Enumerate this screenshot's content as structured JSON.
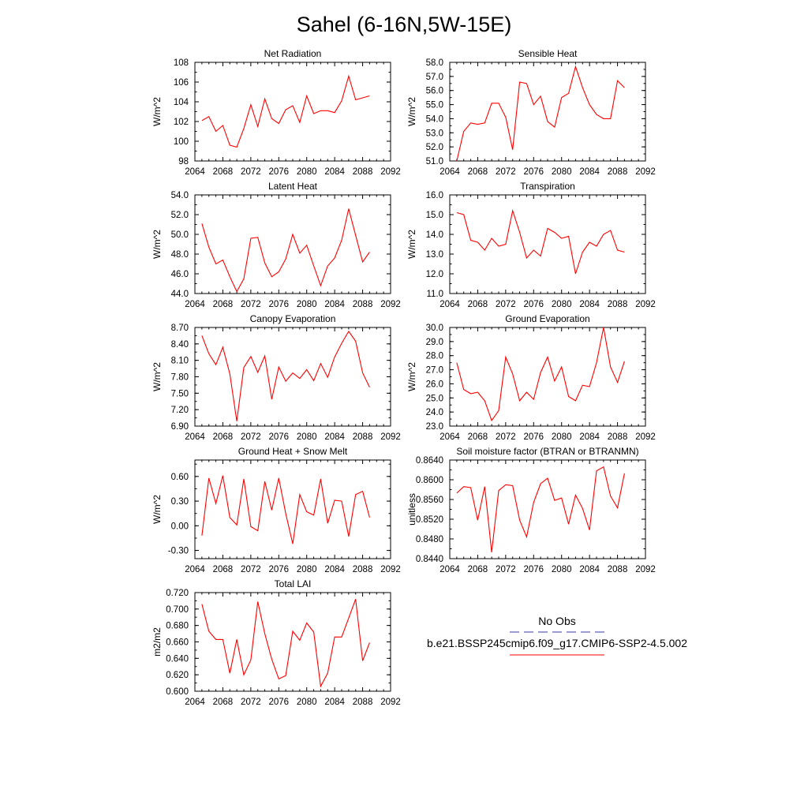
{
  "page_title": "Sahel (6-16N,5W-15E)",
  "legend": {
    "obs_label": "No Obs",
    "obs_color": "#3a3aa6",
    "case_label": "b.e21.BSSP245cmip6.f09_g17.CMIP6-SSP2-4.5.002",
    "case_color": "#ff0000"
  },
  "chart_data": [
    {
      "type": "line",
      "title": "Net Radiation",
      "ylabel": "W/m^2",
      "xlabel": "",
      "xlim": [
        2064,
        2092
      ],
      "xticks": [
        "2064",
        "2068",
        "2072",
        "2076",
        "2080",
        "2084",
        "2088",
        "2092"
      ],
      "ylim": [
        98,
        108
      ],
      "yticks": [
        "98",
        "100",
        "102",
        "104",
        "106",
        "108"
      ],
      "series": [
        {
          "color": "#ff0000",
          "x": [
            2065,
            2066,
            2067,
            2068,
            2069,
            2070,
            2071,
            2072,
            2073,
            2074,
            2075,
            2076,
            2077,
            2078,
            2079,
            2080,
            2081,
            2082,
            2083,
            2084,
            2085,
            2086,
            2087,
            2088,
            2089
          ],
          "values": [
            102.1,
            102.5,
            101.0,
            101.6,
            99.6,
            99.4,
            101.3,
            103.7,
            101.5,
            104.3,
            102.3,
            101.8,
            103.2,
            103.6,
            101.9,
            104.6,
            102.8,
            103.1,
            103.1,
            102.9,
            104.1,
            106.6,
            104.2,
            104.4,
            104.6
          ]
        }
      ]
    },
    {
      "type": "line",
      "title": "Sensible Heat",
      "ylabel": "W/m^2",
      "xlabel": "",
      "xlim": [
        2064,
        2092
      ],
      "xticks": [
        "2064",
        "2068",
        "2072",
        "2076",
        "2080",
        "2084",
        "2088",
        "2092"
      ],
      "ylim": [
        51,
        58
      ],
      "yticks": [
        "51.0",
        "52.0",
        "53.0",
        "54.0",
        "55.0",
        "56.0",
        "57.0",
        "58.0"
      ],
      "series": [
        {
          "color": "#ff0000",
          "x": [
            2065,
            2066,
            2067,
            2068,
            2069,
            2070,
            2071,
            2072,
            2073,
            2074,
            2075,
            2076,
            2077,
            2078,
            2079,
            2080,
            2081,
            2082,
            2083,
            2084,
            2085,
            2086,
            2087,
            2088,
            2089
          ],
          "values": [
            51.0,
            53.1,
            53.7,
            53.6,
            53.7,
            55.1,
            55.1,
            54.1,
            51.8,
            56.6,
            56.5,
            55.0,
            55.6,
            53.8,
            53.4,
            55.5,
            55.8,
            57.7,
            56.2,
            55.0,
            54.3,
            54.0,
            54.0,
            56.7,
            56.2
          ]
        }
      ]
    },
    {
      "type": "line",
      "title": "Latent Heat",
      "ylabel": "W/m^2",
      "xlabel": "",
      "xlim": [
        2064,
        2092
      ],
      "xticks": [
        "2064",
        "2068",
        "2072",
        "2076",
        "2080",
        "2084",
        "2088",
        "2092"
      ],
      "ylim": [
        44,
        54
      ],
      "yticks": [
        "44.0",
        "46.0",
        "48.0",
        "50.0",
        "52.0",
        "54.0"
      ],
      "series": [
        {
          "color": "#ff0000",
          "x": [
            2065,
            2066,
            2067,
            2068,
            2069,
            2070,
            2071,
            2072,
            2073,
            2074,
            2075,
            2076,
            2077,
            2078,
            2079,
            2080,
            2081,
            2082,
            2083,
            2084,
            2085,
            2086,
            2087,
            2088,
            2089
          ],
          "values": [
            51.1,
            48.7,
            47.0,
            47.4,
            45.7,
            44.2,
            45.5,
            49.6,
            49.7,
            47.1,
            45.7,
            46.2,
            47.5,
            50.0,
            48.1,
            48.9,
            46.8,
            44.8,
            46.8,
            47.6,
            49.4,
            52.6,
            49.9,
            47.2,
            48.2
          ]
        }
      ]
    },
    {
      "type": "line",
      "title": "Transpiration",
      "ylabel": "W/m^2",
      "xlabel": "",
      "xlim": [
        2064,
        2092
      ],
      "xticks": [
        "2064",
        "2068",
        "2072",
        "2076",
        "2080",
        "2084",
        "2088",
        "2092"
      ],
      "ylim": [
        11,
        16
      ],
      "yticks": [
        "11.0",
        "12.0",
        "13.0",
        "14.0",
        "15.0",
        "16.0"
      ],
      "series": [
        {
          "color": "#ff0000",
          "x": [
            2065,
            2066,
            2067,
            2068,
            2069,
            2070,
            2071,
            2072,
            2073,
            2074,
            2075,
            2076,
            2077,
            2078,
            2079,
            2080,
            2081,
            2082,
            2083,
            2084,
            2085,
            2086,
            2087,
            2088,
            2089
          ],
          "values": [
            15.1,
            15.0,
            13.7,
            13.6,
            13.2,
            13.8,
            13.4,
            13.5,
            15.2,
            14.1,
            12.8,
            13.2,
            12.9,
            14.3,
            14.1,
            13.8,
            13.9,
            12.0,
            13.1,
            13.6,
            13.4,
            14.0,
            14.2,
            13.2,
            13.1
          ]
        }
      ]
    },
    {
      "type": "line",
      "title": "Canopy Evaporation",
      "ylabel": "W/m^2",
      "xlabel": "",
      "xlim": [
        2064,
        2092
      ],
      "xticks": [
        "2064",
        "2068",
        "2072",
        "2076",
        "2080",
        "2084",
        "2088",
        "2092"
      ],
      "ylim": [
        6.9,
        8.7
      ],
      "yticks": [
        "6.90",
        "7.20",
        "7.50",
        "7.80",
        "8.10",
        "8.40",
        "8.70"
      ],
      "series": [
        {
          "color": "#ff0000",
          "x": [
            2065,
            2066,
            2067,
            2068,
            2069,
            2070,
            2071,
            2072,
            2073,
            2074,
            2075,
            2076,
            2077,
            2078,
            2079,
            2080,
            2081,
            2082,
            2083,
            2084,
            2085,
            2086,
            2087,
            2088,
            2089
          ],
          "values": [
            8.55,
            8.22,
            8.02,
            8.34,
            7.85,
            6.99,
            7.97,
            8.17,
            7.88,
            8.18,
            7.39,
            7.98,
            7.72,
            7.87,
            7.77,
            7.93,
            7.73,
            8.04,
            7.79,
            8.16,
            8.41,
            8.63,
            8.45,
            7.87,
            7.61
          ]
        }
      ]
    },
    {
      "type": "line",
      "title": "Ground Evaporation",
      "ylabel": "W/m^2",
      "xlabel": "",
      "xlim": [
        2064,
        2092
      ],
      "xticks": [
        "2064",
        "2068",
        "2072",
        "2076",
        "2080",
        "2084",
        "2088",
        "2092"
      ],
      "ylim": [
        23,
        30
      ],
      "yticks": [
        "23.0",
        "24.0",
        "25.0",
        "26.0",
        "27.0",
        "28.0",
        "29.0",
        "30.0"
      ],
      "series": [
        {
          "color": "#ff0000",
          "x": [
            2065,
            2066,
            2067,
            2068,
            2069,
            2070,
            2071,
            2072,
            2073,
            2074,
            2075,
            2076,
            2077,
            2078,
            2079,
            2080,
            2081,
            2082,
            2083,
            2084,
            2085,
            2086,
            2087,
            2088,
            2089
          ],
          "values": [
            27.5,
            25.6,
            25.3,
            25.4,
            24.8,
            23.4,
            24.1,
            27.9,
            26.7,
            24.8,
            25.4,
            24.9,
            26.8,
            27.9,
            26.2,
            27.2,
            25.1,
            24.8,
            25.9,
            25.8,
            27.5,
            30.0,
            27.2,
            26.1,
            27.6
          ]
        }
      ]
    },
    {
      "type": "line",
      "title": "Ground Heat + Snow Melt",
      "ylabel": "W/m^2",
      "xlabel": "",
      "xlim": [
        2064,
        2092
      ],
      "xticks": [
        "2064",
        "2068",
        "2072",
        "2076",
        "2080",
        "2084",
        "2088",
        "2092"
      ],
      "ylim": [
        -0.4,
        0.8
      ],
      "yticks": [
        "-0.30",
        "0.00",
        "0.30",
        "0.60"
      ],
      "ytick_values": [
        -0.3,
        0.0,
        0.3,
        0.6
      ],
      "series": [
        {
          "color": "#ff0000",
          "x": [
            2065,
            2066,
            2067,
            2068,
            2069,
            2070,
            2071,
            2072,
            2073,
            2074,
            2075,
            2076,
            2077,
            2078,
            2079,
            2080,
            2081,
            2082,
            2083,
            2084,
            2085,
            2086,
            2087,
            2088,
            2089
          ],
          "values": [
            -0.12,
            0.58,
            0.27,
            0.61,
            0.1,
            0.01,
            0.57,
            -0.01,
            -0.06,
            0.54,
            0.19,
            0.58,
            0.15,
            -0.22,
            0.38,
            0.17,
            0.13,
            0.57,
            0.03,
            0.31,
            0.3,
            -0.13,
            0.38,
            0.42,
            0.1
          ]
        }
      ]
    },
    {
      "type": "line",
      "title": "Soil moisture factor (BTRAN or BTRANMN)",
      "ylabel": "unitless",
      "xlabel": "",
      "xlim": [
        2064,
        2092
      ],
      "xticks": [
        "2064",
        "2068",
        "2072",
        "2076",
        "2080",
        "2084",
        "2088",
        "2092"
      ],
      "ylim": [
        0.844,
        0.864
      ],
      "yticks": [
        "0.8440",
        "0.8480",
        "0.8520",
        "0.8560",
        "0.8600",
        "0.8640"
      ],
      "series": [
        {
          "color": "#ff0000",
          "x": [
            2065,
            2066,
            2067,
            2068,
            2069,
            2070,
            2071,
            2072,
            2073,
            2074,
            2075,
            2076,
            2077,
            2078,
            2079,
            2080,
            2081,
            2082,
            2083,
            2084,
            2085,
            2086,
            2087,
            2088,
            2089
          ],
          "values": [
            0.8573,
            0.8586,
            0.8584,
            0.8518,
            0.8586,
            0.8453,
            0.8578,
            0.859,
            0.8588,
            0.8518,
            0.8484,
            0.8554,
            0.8592,
            0.8603,
            0.8558,
            0.8563,
            0.851,
            0.8569,
            0.8542,
            0.8498,
            0.8618,
            0.8626,
            0.8567,
            0.8543,
            0.8613
          ]
        }
      ]
    },
    {
      "type": "line",
      "title": "Total LAI",
      "ylabel": "m2/m2",
      "xlabel": "",
      "xlim": [
        2064,
        2092
      ],
      "xticks": [
        "2064",
        "2068",
        "2072",
        "2076",
        "2080",
        "2084",
        "2088",
        "2092"
      ],
      "ylim": [
        0.6,
        0.72
      ],
      "yticks": [
        "0.600",
        "0.620",
        "0.640",
        "0.660",
        "0.680",
        "0.700",
        "0.720"
      ],
      "series": [
        {
          "color": "#ff0000",
          "x": [
            2065,
            2066,
            2067,
            2068,
            2069,
            2070,
            2071,
            2072,
            2073,
            2074,
            2075,
            2076,
            2077,
            2078,
            2079,
            2080,
            2081,
            2082,
            2083,
            2084,
            2085,
            2086,
            2087,
            2088,
            2089
          ],
          "values": [
            0.706,
            0.673,
            0.663,
            0.663,
            0.622,
            0.663,
            0.62,
            0.638,
            0.709,
            0.67,
            0.639,
            0.615,
            0.619,
            0.673,
            0.662,
            0.683,
            0.672,
            0.606,
            0.622,
            0.666,
            0.666,
            0.689,
            0.712,
            0.637,
            0.659
          ]
        }
      ]
    }
  ]
}
